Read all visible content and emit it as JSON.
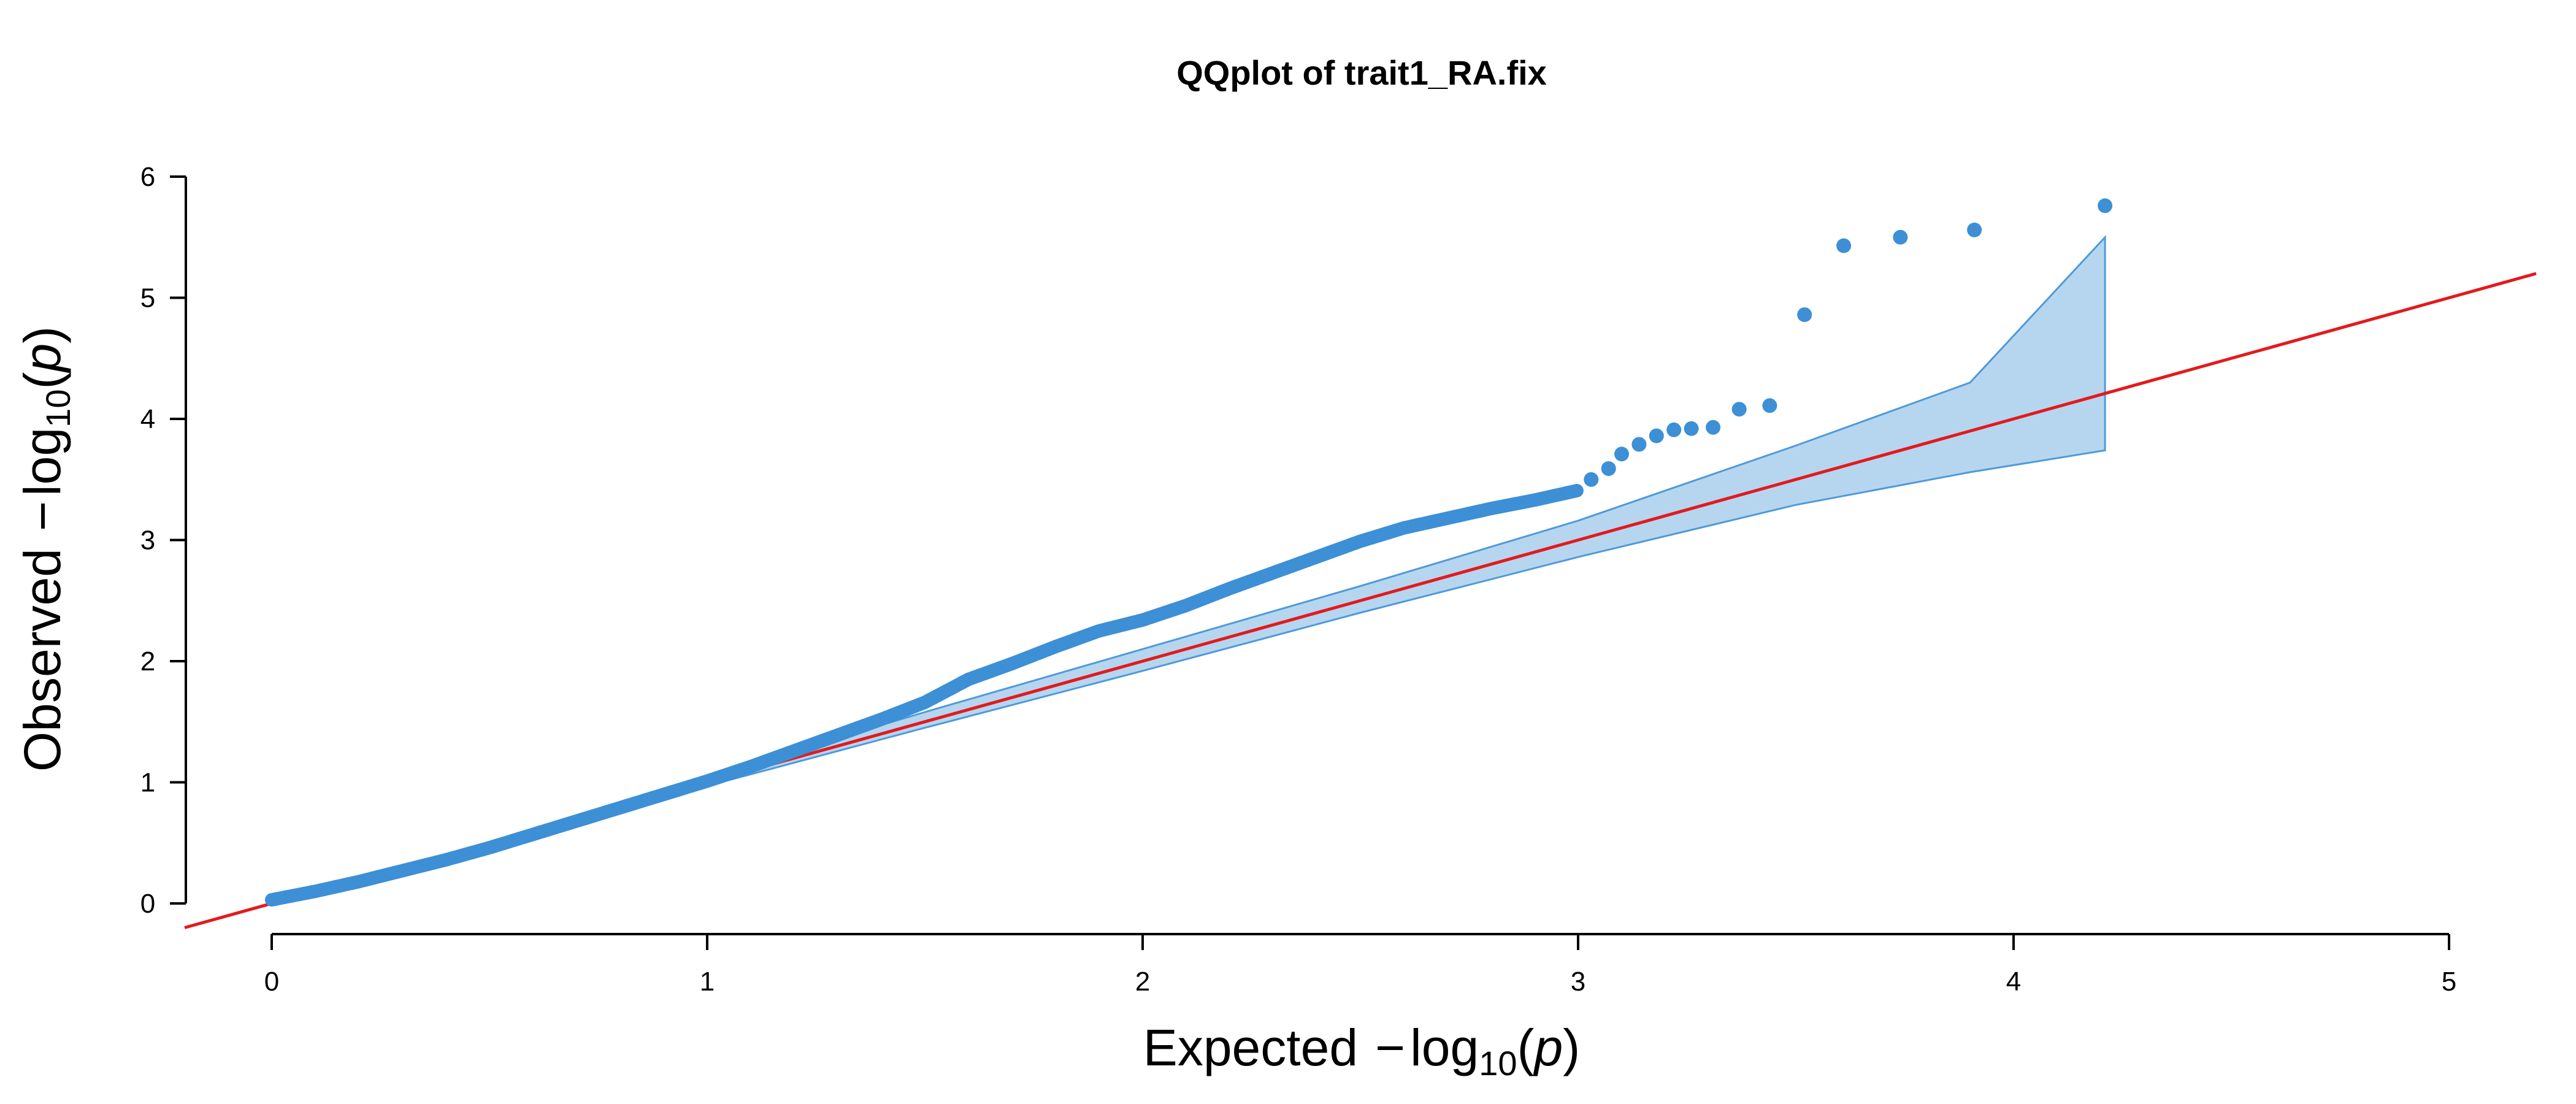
{
  "chart_data": {
    "type": "scatter",
    "title": "QQplot of trait1_RA.fix",
    "xlabel": {
      "prefix": "Expected",
      "minus": "−",
      "log": "log",
      "base": "10",
      "open": "(",
      "var": "p",
      "close": ")"
    },
    "ylabel": {
      "prefix": "Observed",
      "minus": "−",
      "log": "log",
      "base": "10",
      "open": "(",
      "var": "p",
      "close": ")"
    },
    "xlim": [
      0,
      5
    ],
    "ylim": [
      0,
      6
    ],
    "xticks": [
      "0",
      "1",
      "2",
      "3",
      "4",
      "5"
    ],
    "yticks": [
      "0",
      "1",
      "2",
      "3",
      "4",
      "5",
      "6"
    ],
    "colors": {
      "points": "#3d8fd6",
      "band_fill": "#b6d6f0",
      "band_stroke": "#4f9ad8",
      "diagonal": "#e31a1c",
      "axis": "#000000"
    },
    "diagonal": {
      "slope": 1,
      "intercept": 0
    },
    "confidence_band": {
      "x": [
        1.0,
        1.5,
        2.0,
        2.5,
        3.0,
        3.5,
        3.9,
        4.21
      ],
      "upper": [
        1.04,
        1.58,
        2.1,
        2.62,
        3.16,
        3.78,
        4.3,
        5.5
      ],
      "lower": [
        0.97,
        1.45,
        1.92,
        2.4,
        2.86,
        3.29,
        3.56,
        3.74
      ]
    },
    "dense_curve": {
      "x": [
        0,
        0.1,
        0.2,
        0.3,
        0.4,
        0.5,
        0.6,
        0.7,
        0.8,
        0.9,
        1.0,
        1.1,
        1.2,
        1.3,
        1.4,
        1.5,
        1.6,
        1.7,
        1.8,
        1.9,
        2.0,
        2.1,
        2.2,
        2.3,
        2.4,
        2.5,
        2.6,
        2.7,
        2.8,
        2.9,
        3.0
      ],
      "y": [
        0.03,
        0.1,
        0.18,
        0.27,
        0.36,
        0.46,
        0.57,
        0.68,
        0.79,
        0.9,
        1.01,
        1.13,
        1.26,
        1.39,
        1.52,
        1.66,
        1.85,
        1.98,
        2.12,
        2.25,
        2.34,
        2.46,
        2.6,
        2.73,
        2.86,
        2.99,
        3.1,
        3.18,
        3.26,
        3.33,
        3.41
      ]
    },
    "tail_points": [
      {
        "x": 3.03,
        "y": 3.5
      },
      {
        "x": 3.07,
        "y": 3.59
      },
      {
        "x": 3.1,
        "y": 3.71
      },
      {
        "x": 3.14,
        "y": 3.79
      },
      {
        "x": 3.18,
        "y": 3.86
      },
      {
        "x": 3.22,
        "y": 3.91
      },
      {
        "x": 3.26,
        "y": 3.92
      },
      {
        "x": 3.31,
        "y": 3.93
      },
      {
        "x": 3.37,
        "y": 4.08
      },
      {
        "x": 3.44,
        "y": 4.11
      },
      {
        "x": 3.52,
        "y": 4.86
      },
      {
        "x": 3.61,
        "y": 5.43
      },
      {
        "x": 3.74,
        "y": 5.5
      },
      {
        "x": 3.91,
        "y": 5.56
      },
      {
        "x": 4.21,
        "y": 5.76
      }
    ]
  }
}
